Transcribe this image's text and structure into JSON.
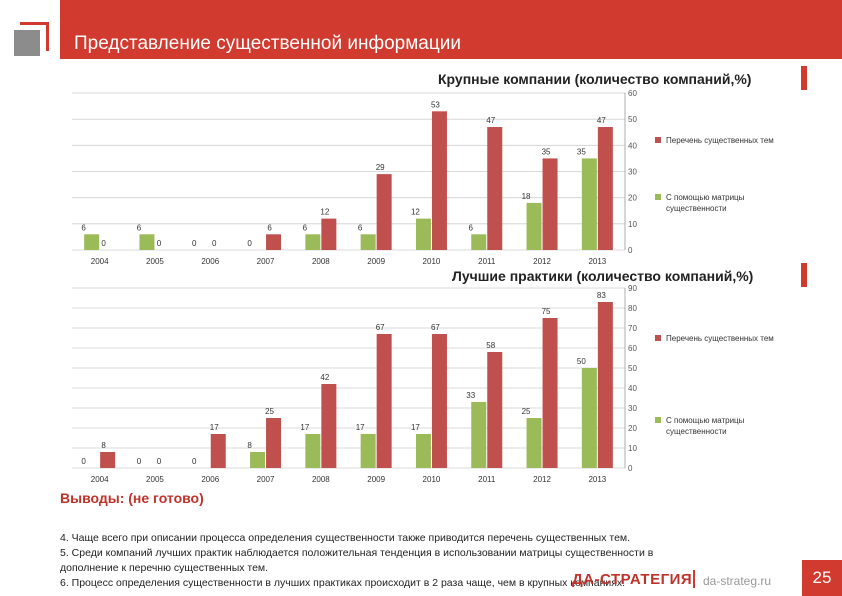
{
  "header": {
    "title": "Представление существенной информации"
  },
  "chart_data": [
    {
      "type": "bar",
      "title": "Крупные компании (количество компаний,%)",
      "categories": [
        "2004",
        "2005",
        "2006",
        "2007",
        "2008",
        "2009",
        "2010",
        "2011",
        "2012",
        "2013"
      ],
      "ylim": [
        0,
        60
      ],
      "yticks": [
        0,
        10,
        20,
        30,
        40,
        50,
        60
      ],
      "series": [
        {
          "name": "С помощью матрицы существенности",
          "color": "#9bbb59",
          "values": [
            6,
            6,
            0,
            0,
            6,
            6,
            12,
            6,
            18,
            35
          ],
          "labels": [
            "6",
            "6",
            "0",
            "0",
            "6",
            "6",
            "12",
            "6",
            "18",
            "35"
          ]
        },
        {
          "name": "Перечень существенных тем",
          "color": "#c0504d",
          "values": [
            0,
            0,
            0,
            6,
            12,
            29,
            53,
            47,
            35,
            47
          ],
          "labels": [
            "0",
            "0",
            "0",
            "6",
            "12",
            "29",
            "53",
            "47",
            "35",
            "47"
          ]
        }
      ]
    },
    {
      "type": "bar",
      "title": "Лучшие практики (количество компаний,%)",
      "categories": [
        "2004",
        "2005",
        "2006",
        "2007",
        "2008",
        "2009",
        "2010",
        "2011",
        "2012",
        "2013"
      ],
      "ylim": [
        0,
        90
      ],
      "yticks": [
        0,
        10,
        20,
        30,
        40,
        50,
        60,
        70,
        80,
        90
      ],
      "series": [
        {
          "name": "С помощью матрицы существенности",
          "color": "#9bbb59",
          "values": [
            0,
            0,
            0,
            8,
            17,
            17,
            17,
            33,
            25,
            50
          ],
          "labels": [
            "0",
            "0",
            "0",
            "8",
            "17",
            "17",
            "17",
            "33",
            "25",
            "50"
          ]
        },
        {
          "name": "Перечень существенных тем",
          "color": "#c0504d",
          "values": [
            8,
            0,
            17,
            25,
            42,
            67,
            67,
            58,
            75,
            83
          ],
          "labels": [
            "8",
            "0",
            "17",
            "25",
            "42",
            "67",
            "67",
            "58",
            "75",
            "83"
          ]
        }
      ]
    }
  ],
  "conclusions": {
    "title": "Выводы: (не готово)",
    "items": [
      "4. Чаще всего при описании процесса определения существенности также приводится перечень существенных тем.",
      "5. Среди компаний лучших практик наблюдается положительная тенденция в  использовании матрицы существенности в",
      "дополнение к перечню существенных тем.",
      "6.  Процесс  определения существенности в лучших практиках происходит в 2 раза чаще, чем в крупных компаниях."
    ]
  },
  "footer": {
    "brand": "ДА-СТРАТЕГИЯ",
    "site": "da-strateg.ru",
    "page": "25"
  }
}
